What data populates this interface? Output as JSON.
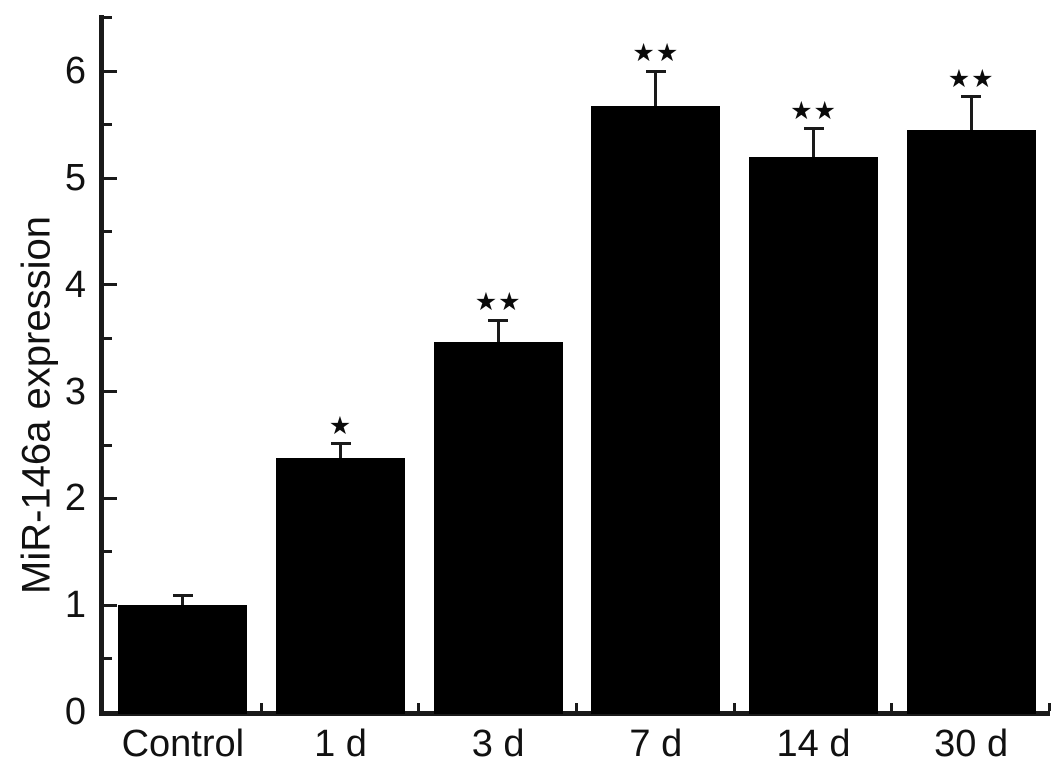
{
  "chart_data": {
    "type": "bar",
    "title": "",
    "xlabel": "",
    "ylabel": "MiR-146a expression",
    "categories": [
      "Control",
      "1 d",
      "3 d",
      "7 d",
      "14 d",
      "30 d"
    ],
    "values": [
      1.0,
      2.38,
      3.46,
      5.67,
      5.2,
      5.45
    ],
    "errors_upper": [
      0.09,
      0.13,
      0.21,
      0.33,
      0.26,
      0.31
    ],
    "significance": [
      "",
      "*",
      "**",
      "**",
      "**",
      "**"
    ],
    "significance_symbol": "black-star-asterisk",
    "yticks": [
      0,
      1,
      2,
      3,
      4,
      5,
      6
    ],
    "y_minor_tick_step": 0.5,
    "y_minor_tick_max": 6.5,
    "ylim": [
      0,
      6.5
    ],
    "bar_color": "#000000",
    "axis_color": "#1a1a1a",
    "error_bar_style": "upper-only-with-cap",
    "grid": false,
    "legend": "none"
  }
}
